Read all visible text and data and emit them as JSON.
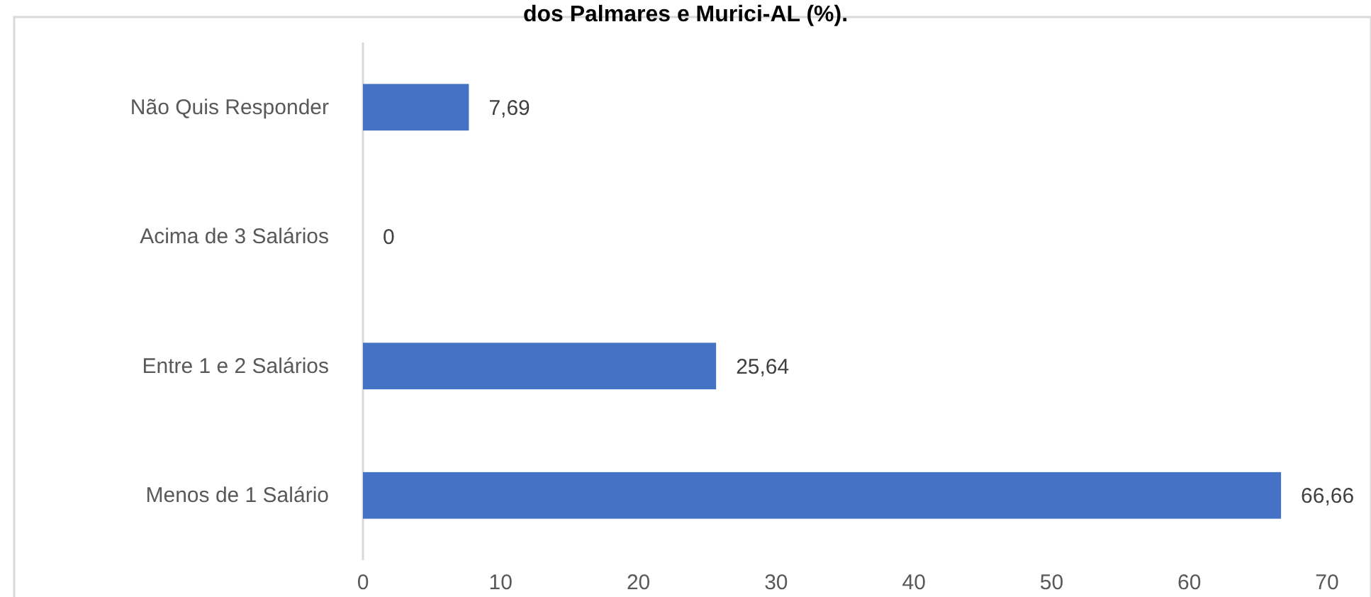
{
  "chart_data": {
    "type": "bar",
    "orientation": "horizontal",
    "title": "dos Palmares e Murici-AL (%).",
    "categories": [
      "Não Quis Responder",
      "Acima de 3 Salários",
      "Entre 1 e 2 Salários",
      "Menos de 1 Salário"
    ],
    "values": [
      7.69,
      0,
      25.64,
      66.66
    ],
    "value_labels": [
      "7,69",
      "0",
      "25,64",
      "66,66"
    ],
    "color": "#4472c4",
    "xlim": [
      0,
      70
    ],
    "xticks": [
      0,
      10,
      20,
      30,
      40,
      50,
      60,
      70
    ],
    "grid": false
  }
}
